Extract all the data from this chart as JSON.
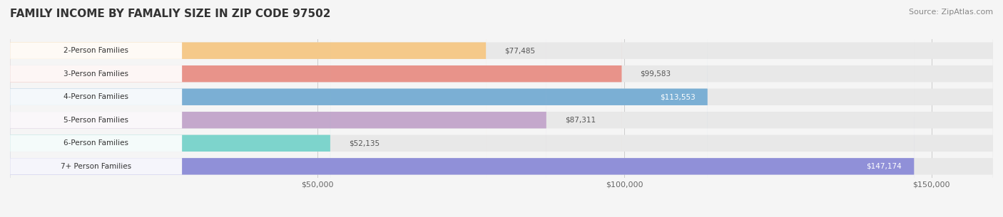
{
  "title": "FAMILY INCOME BY FAMALIY SIZE IN ZIP CODE 97502",
  "source": "Source: ZipAtlas.com",
  "categories": [
    "2-Person Families",
    "3-Person Families",
    "4-Person Families",
    "5-Person Families",
    "6-Person Families",
    "7+ Person Families"
  ],
  "values": [
    77485,
    99583,
    113553,
    87311,
    52135,
    147174
  ],
  "bar_colors": [
    "#f5c98a",
    "#e8938a",
    "#7bafd4",
    "#c4a8cc",
    "#7dd4cc",
    "#9090d8"
  ],
  "label_colors": [
    "#555555",
    "#555555",
    "#ffffff",
    "#555555",
    "#555555",
    "#ffffff"
  ],
  "xlim": [
    0,
    160000
  ],
  "xticks": [
    0,
    50000,
    100000,
    150000
  ],
  "xtick_labels": [
    "$50,000",
    "$100,000",
    "$150,000"
  ],
  "background_color": "#f5f5f5",
  "bar_bg_color": "#e8e8e8",
  "title_fontsize": 11,
  "source_fontsize": 8
}
